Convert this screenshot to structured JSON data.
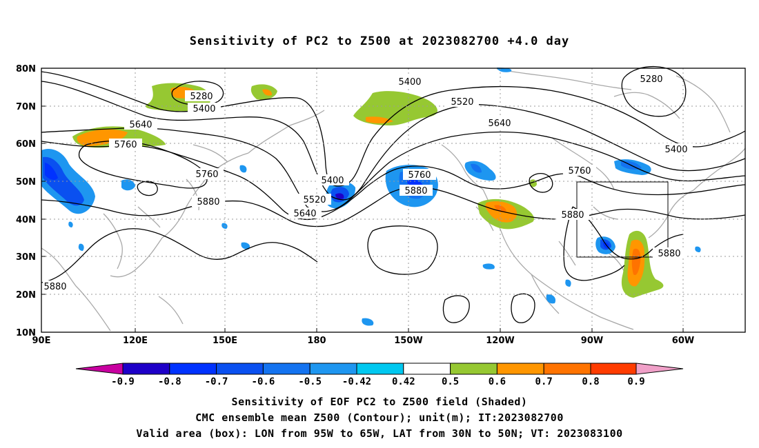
{
  "title": "Sensitivity of PC2 to Z500 at 2023082700 +4.0 day",
  "lat_labels": [
    "80N",
    "70N",
    "60N",
    "50N",
    "40N",
    "30N",
    "20N",
    "10N"
  ],
  "lon_labels": [
    "90E",
    "120E",
    "150E",
    "180",
    "150W",
    "120W",
    "90W",
    "60W"
  ],
  "contour_labels": [
    "5280",
    "5400",
    "5640",
    "5760",
    "5760",
    "5880",
    "5400",
    "5520",
    "5640",
    "5760",
    "5880",
    "5400",
    "5520",
    "5640",
    "5760",
    "5880",
    "5280",
    "5400",
    "5880",
    "5880"
  ],
  "colorbar": {
    "labels": [
      "-0.9",
      "-0.8",
      "-0.7",
      "-0.6",
      "-0.5",
      "-0.42",
      "0.42",
      "0.5",
      "0.6",
      "0.7",
      "0.8",
      "0.9"
    ],
    "colors": [
      "#c800a0",
      "#1e00c8",
      "#0032ff",
      "#0a50f0",
      "#1473f0",
      "#1e96f0",
      "#00c8f0",
      "#ffffff",
      "#96c832",
      "#ff9600",
      "#ff7300",
      "#ff3c00",
      "#ff0000",
      "#f0a0c8"
    ]
  },
  "shading_colors": {
    "deep_blue": "#1e00c8",
    "blue": "#0032ff",
    "mid_blue": "#1473f0",
    "light_blue": "#00c8f0",
    "green": "#96c832",
    "orange": "#ff9600",
    "dark_orange": "#ff7300"
  },
  "captions": [
    "Sensitivity of EOF PC2 to Z500 field (Shaded)",
    "CMC ensemble mean Z500 (Contour); unit(m); IT:2023082700",
    "Valid area (box): LON from 95W to 65W, LAT from 30N to 50N; VT: 2023083100"
  ]
}
